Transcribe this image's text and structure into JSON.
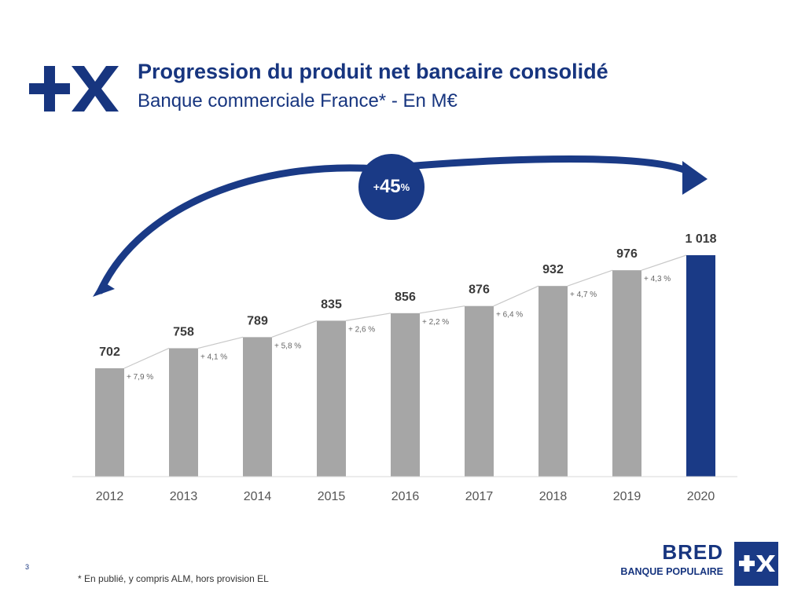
{
  "header": {
    "logo_icon": "plus-x-logo",
    "title": "Progression du produit net bancaire consolidé",
    "subtitle": "Banque commerciale France* - En M€"
  },
  "growth_badge": {
    "prefix": "+",
    "value": "45",
    "suffix": "%"
  },
  "chart_data": {
    "type": "bar",
    "categories": [
      "2012",
      "2013",
      "2014",
      "2015",
      "2016",
      "2017",
      "2018",
      "2019",
      "2020"
    ],
    "values": [
      702,
      758,
      789,
      835,
      856,
      876,
      932,
      976,
      1018
    ],
    "value_labels": [
      "702",
      "758",
      "789",
      "835",
      "856",
      "876",
      "932",
      "976",
      "1 018"
    ],
    "growth_labels": [
      "+ 7,9 %",
      "+ 4,1 %",
      "+ 5,8 %",
      "+ 2,6 %",
      "+ 2,2 %",
      "+ 6,4 %",
      "+ 4,7 %",
      "+ 4,3 %"
    ],
    "colors": {
      "bar": "#a6a6a6",
      "highlight_bar": "#1a3a86",
      "connector": "#c8c8c8",
      "arrow": "#1a3a86"
    },
    "highlight_index": 8,
    "baseline": 0
  },
  "page_number": "3",
  "footnote": "* En publié, y compris ALM, hors provision EL",
  "brand": {
    "name": "BRED",
    "tagline": "BANQUE POPULAIRE",
    "icon": "plus-x-square-icon"
  }
}
